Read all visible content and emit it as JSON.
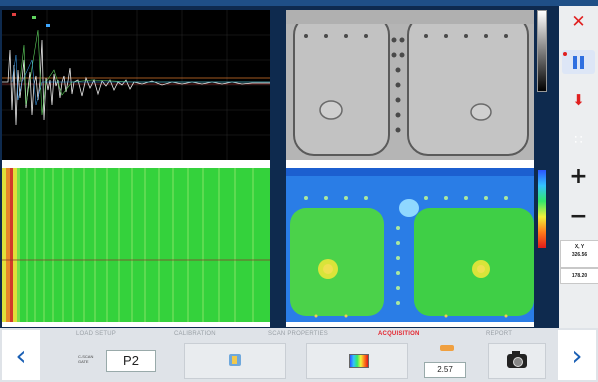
{
  "side": {
    "close_icon": "close-icon",
    "pause_icon": "pause-icon",
    "download_icon": "arrow-down-icon",
    "grid_icon": "grid-icon",
    "zoom_in": "+",
    "zoom_out": "−",
    "xy_label": "X, Y",
    "x_value": "326.56",
    "y_value": "178.20"
  },
  "bottom": {
    "tabs": [
      {
        "label": "LOAD SETUP"
      },
      {
        "label": "CALIBRATION"
      },
      {
        "label": "SCAN PROPERTIES"
      },
      {
        "label": "ACQUISITION"
      },
      {
        "label": "REPORT"
      }
    ],
    "scan_gate_label_1": "C-SCAN",
    "scan_gate_label_2": "GATE",
    "gate_value": "P2",
    "gain_value": "2.57",
    "prev_icon": "chevron-left-icon",
    "next_icon": "chevron-right-icon"
  },
  "colors": {
    "accent_blue": "#1a5fb4",
    "active_tab_red": "#e4262f",
    "close_red": "#e02020",
    "pause_blue": "#2f6fe0"
  }
}
